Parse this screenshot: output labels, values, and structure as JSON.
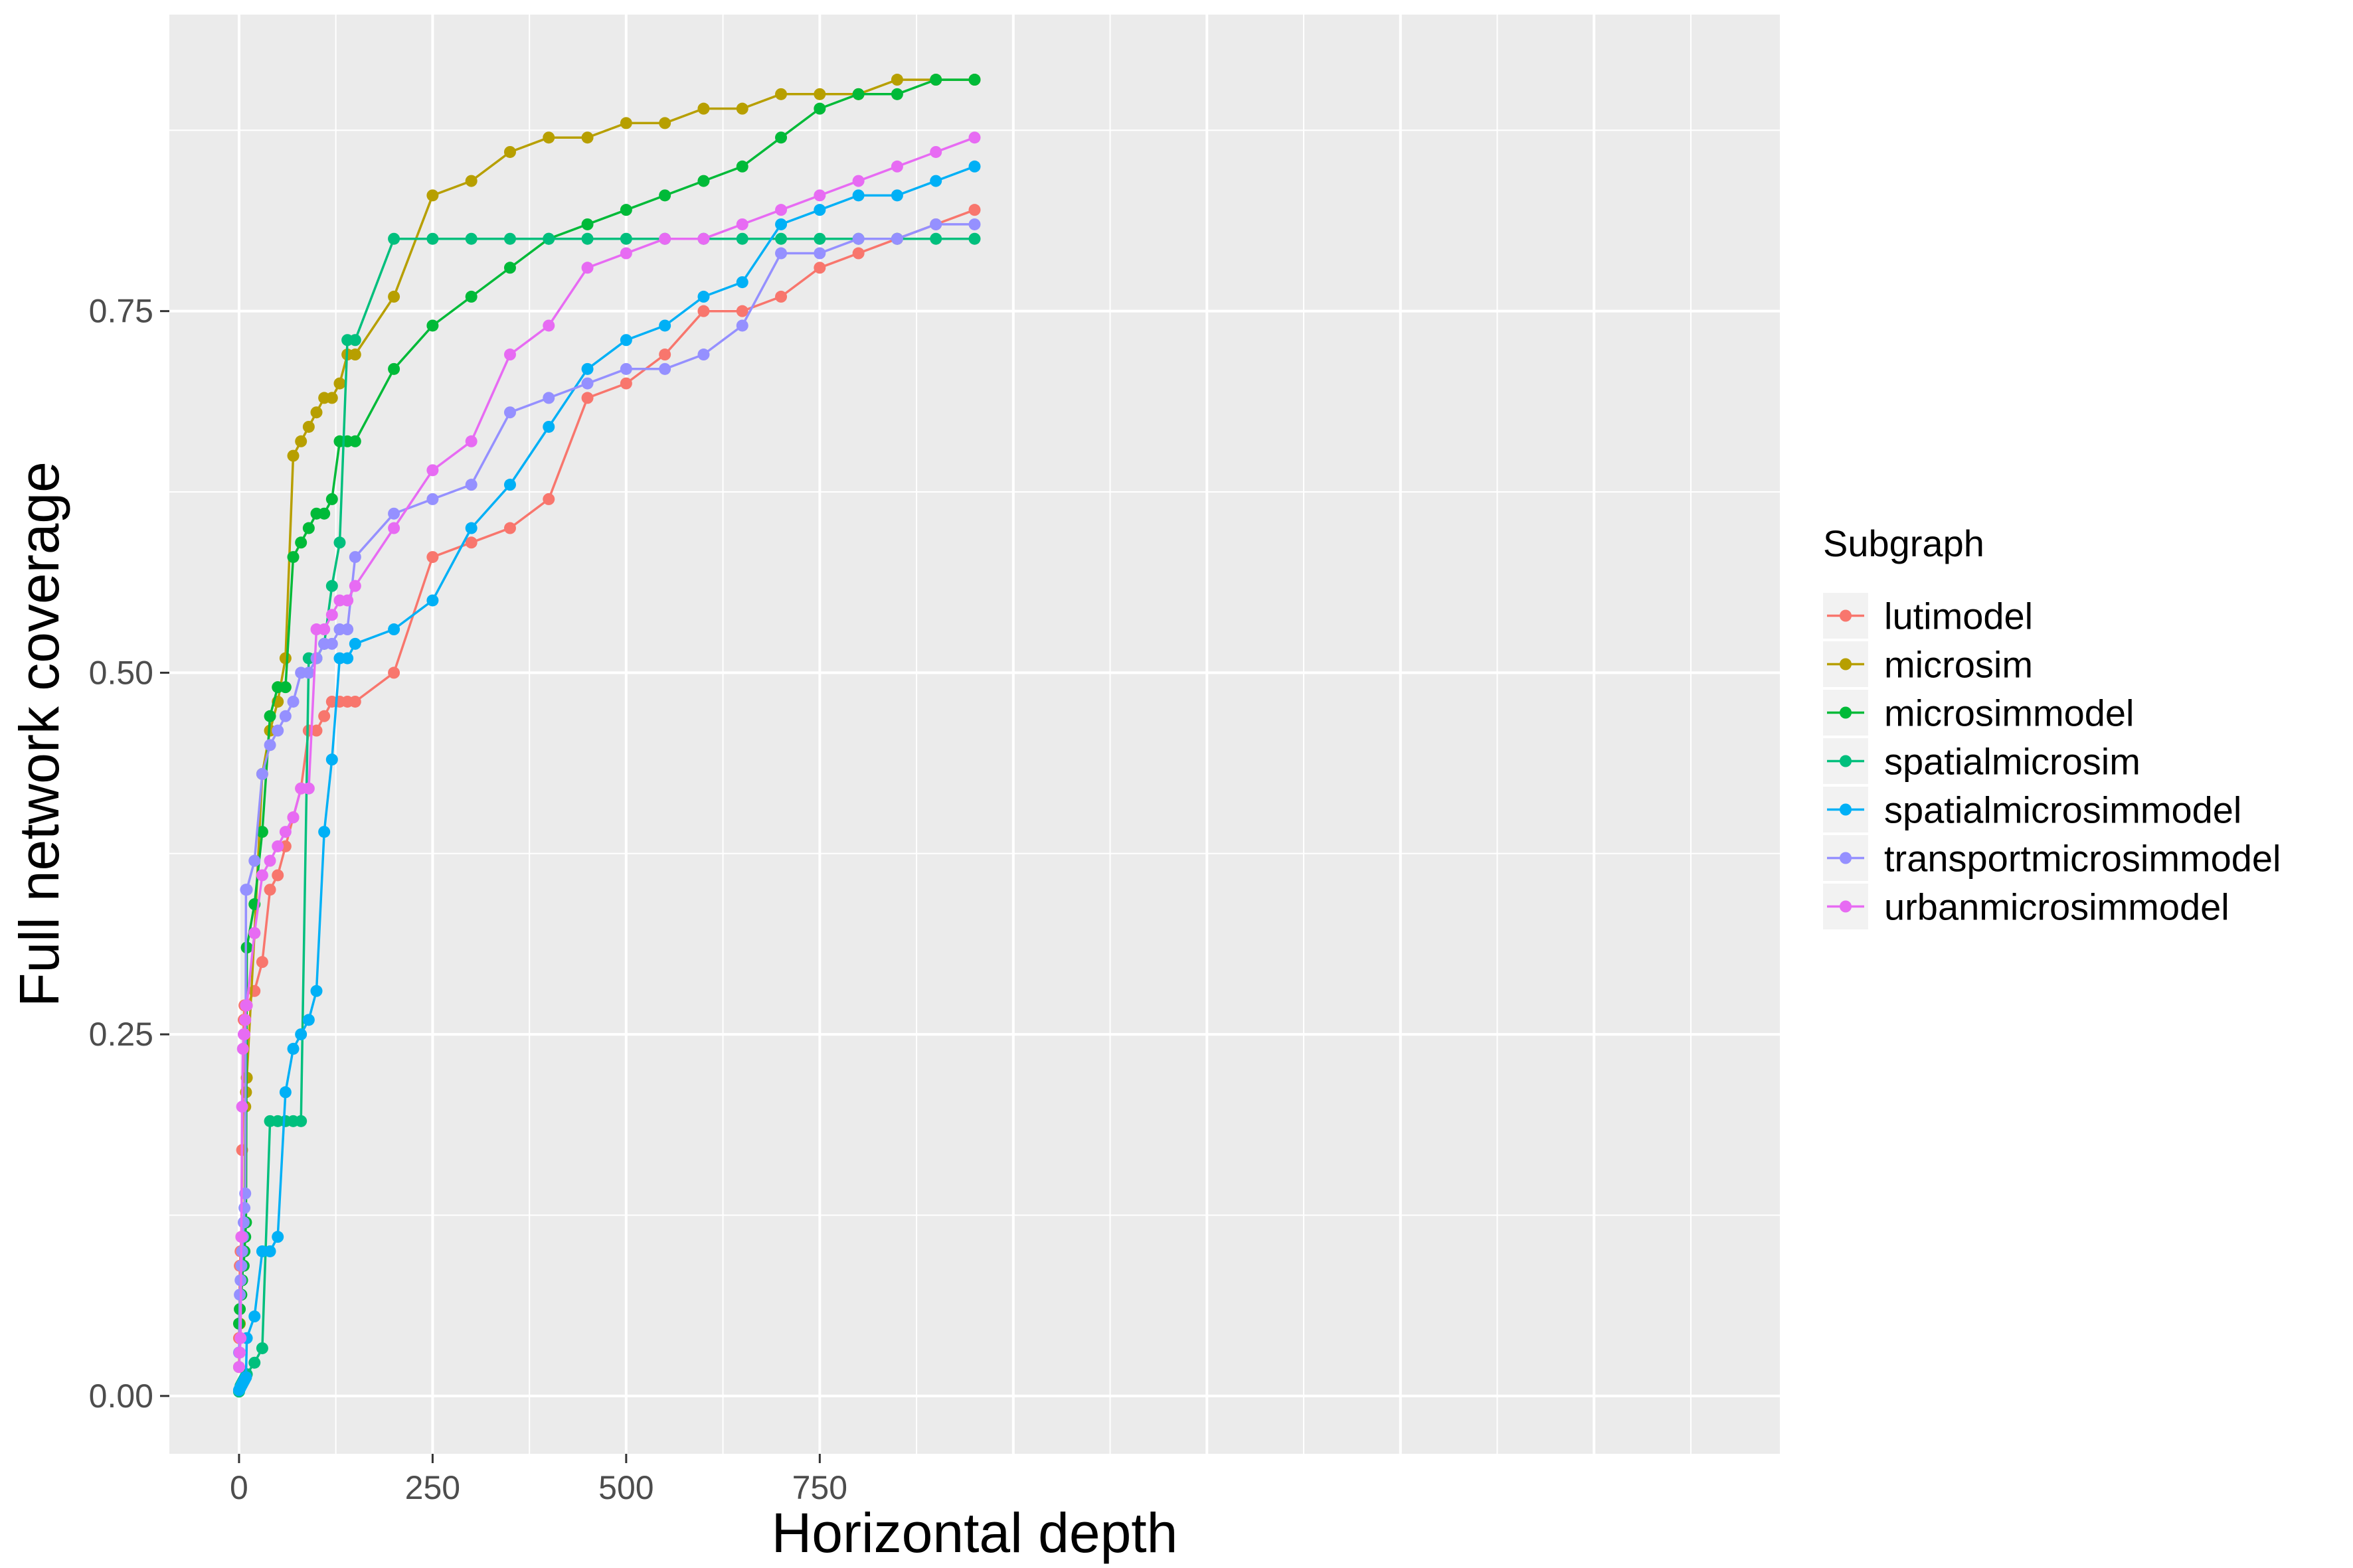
{
  "chart_data": {
    "type": "line",
    "xlabel": "Horizontal depth",
    "ylabel": "Full network coverage",
    "xlim": [
      -90,
      1990
    ],
    "ylim": [
      -0.04,
      0.955
    ],
    "x_ticks": [
      0,
      250,
      500,
      750
    ],
    "x_tick_labels": [
      "0",
      "250",
      "500",
      "750"
    ],
    "y_ticks": [
      0,
      0.25,
      0.5,
      0.75
    ],
    "y_tick_labels": [
      "0.00",
      "0.25",
      "0.50",
      "0.75"
    ],
    "grid": true,
    "legend": {
      "title": "Subgraph",
      "position": "right"
    },
    "colors": {
      "panel_bg": "#ebebeb",
      "grid": "#ffffff",
      "tick": "#333333"
    },
    "series": [
      {
        "name": "lutimodel",
        "color": "#F8766D",
        "x": [
          0,
          1,
          2,
          3,
          4,
          5,
          6,
          7,
          8,
          9,
          10,
          20,
          30,
          40,
          50,
          60,
          70,
          80,
          90,
          100,
          110,
          120,
          130,
          140,
          150,
          200,
          250,
          300,
          350,
          400,
          450,
          500,
          550,
          600,
          650,
          700,
          750,
          800,
          850,
          900,
          950
        ],
        "y": [
          0.04,
          0.09,
          0.1,
          0.11,
          0.17,
          0.2,
          0.26,
          0.27,
          0.27,
          0.27,
          0.27,
          0.28,
          0.3,
          0.35,
          0.36,
          0.38,
          0.4,
          0.42,
          0.46,
          0.46,
          0.47,
          0.48,
          0.48,
          0.48,
          0.48,
          0.5,
          0.58,
          0.59,
          0.6,
          0.62,
          0.69,
          0.7,
          0.72,
          0.75,
          0.75,
          0.76,
          0.78,
          0.79,
          0.8,
          0.81,
          0.82
        ]
      },
      {
        "name": "microsim",
        "color": "#B79F00",
        "x": [
          0,
          1,
          2,
          3,
          4,
          5,
          6,
          7,
          8,
          9,
          10,
          20,
          30,
          40,
          50,
          60,
          70,
          80,
          90,
          100,
          110,
          120,
          130,
          140,
          150,
          200,
          250,
          300,
          350,
          400,
          450,
          500,
          550,
          600,
          650,
          700,
          750,
          800,
          850,
          900,
          950
        ],
        "y": [
          0.02,
          0.05,
          0.07,
          0.08,
          0.09,
          0.1,
          0.11,
          0.12,
          0.2,
          0.21,
          0.22,
          0.32,
          0.43,
          0.46,
          0.48,
          0.51,
          0.65,
          0.66,
          0.67,
          0.68,
          0.69,
          0.69,
          0.7,
          0.72,
          0.72,
          0.76,
          0.83,
          0.84,
          0.86,
          0.87,
          0.87,
          0.88,
          0.88,
          0.89,
          0.89,
          0.9,
          0.9,
          0.9,
          0.91,
          0.91,
          0.91
        ]
      },
      {
        "name": "microsimmodel",
        "color": "#00BA38",
        "x": [
          0,
          1,
          2,
          3,
          4,
          5,
          6,
          7,
          8,
          9,
          10,
          20,
          30,
          40,
          50,
          60,
          70,
          80,
          90,
          100,
          110,
          120,
          130,
          140,
          150,
          200,
          250,
          300,
          350,
          400,
          450,
          500,
          550,
          600,
          650,
          700,
          750,
          800,
          850,
          900,
          950
        ],
        "y": [
          0.05,
          0.06,
          0.07,
          0.07,
          0.08,
          0.09,
          0.09,
          0.1,
          0.11,
          0.12,
          0.31,
          0.34,
          0.39,
          0.47,
          0.49,
          0.49,
          0.58,
          0.59,
          0.6,
          0.61,
          0.61,
          0.62,
          0.66,
          0.66,
          0.66,
          0.71,
          0.74,
          0.76,
          0.78,
          0.8,
          0.81,
          0.82,
          0.83,
          0.84,
          0.85,
          0.87,
          0.89,
          0.9,
          0.9,
          0.91,
          0.91
        ]
      },
      {
        "name": "spatialmicrosim",
        "color": "#00BF7D",
        "x": [
          0,
          1,
          2,
          3,
          4,
          5,
          6,
          7,
          8,
          9,
          10,
          20,
          30,
          40,
          50,
          60,
          70,
          80,
          90,
          100,
          110,
          120,
          130,
          140,
          150,
          200,
          250,
          300,
          350,
          400,
          450,
          500,
          550,
          600,
          650,
          700,
          750,
          800,
          850,
          900,
          950
        ],
        "y": [
          0.003,
          0.005,
          0.007,
          0.008,
          0.009,
          0.01,
          0.011,
          0.012,
          0.013,
          0.014,
          0.015,
          0.023,
          0.033,
          0.19,
          0.19,
          0.19,
          0.19,
          0.19,
          0.51,
          0.51,
          0.52,
          0.56,
          0.59,
          0.73,
          0.73,
          0.8,
          0.8,
          0.8,
          0.8,
          0.8,
          0.8,
          0.8,
          0.8,
          0.8,
          0.8,
          0.8,
          0.8,
          0.8,
          0.8,
          0.8,
          0.8
        ]
      },
      {
        "name": "spatialmicrosimmodel",
        "color": "#00B0F6",
        "x": [
          0,
          1,
          2,
          3,
          4,
          5,
          6,
          7,
          8,
          9,
          10,
          20,
          30,
          40,
          50,
          60,
          70,
          80,
          90,
          100,
          110,
          120,
          130,
          140,
          150,
          200,
          250,
          300,
          350,
          400,
          450,
          500,
          550,
          600,
          650,
          700,
          750,
          800,
          850,
          900,
          950
        ],
        "y": [
          0.004,
          0.005,
          0.006,
          0.007,
          0.008,
          0.009,
          0.01,
          0.011,
          0.012,
          0.013,
          0.04,
          0.055,
          0.1,
          0.1,
          0.11,
          0.21,
          0.24,
          0.25,
          0.26,
          0.28,
          0.39,
          0.44,
          0.51,
          0.51,
          0.52,
          0.53,
          0.55,
          0.6,
          0.63,
          0.67,
          0.71,
          0.73,
          0.74,
          0.76,
          0.77,
          0.81,
          0.82,
          0.83,
          0.83,
          0.84,
          0.85
        ]
      },
      {
        "name": "transportmicrosimmodel",
        "color": "#9590FF",
        "x": [
          0,
          1,
          2,
          3,
          4,
          5,
          6,
          7,
          8,
          9,
          10,
          20,
          30,
          40,
          50,
          60,
          70,
          80,
          90,
          100,
          110,
          120,
          130,
          140,
          150,
          200,
          250,
          300,
          350,
          400,
          450,
          500,
          550,
          600,
          650,
          700,
          750,
          800,
          850,
          900,
          950
        ],
        "y": [
          0.03,
          0.07,
          0.08,
          0.09,
          0.1,
          0.11,
          0.12,
          0.13,
          0.14,
          0.35,
          0.35,
          0.37,
          0.43,
          0.45,
          0.46,
          0.47,
          0.48,
          0.5,
          0.5,
          0.51,
          0.52,
          0.52,
          0.53,
          0.53,
          0.58,
          0.61,
          0.62,
          0.63,
          0.68,
          0.69,
          0.7,
          0.71,
          0.71,
          0.72,
          0.74,
          0.79,
          0.79,
          0.8,
          0.8,
          0.81,
          0.81
        ]
      },
      {
        "name": "urbanmicrosimmodel",
        "color": "#E76BF3",
        "x": [
          0,
          1,
          2,
          3,
          4,
          5,
          6,
          7,
          8,
          9,
          10,
          20,
          30,
          40,
          50,
          60,
          70,
          80,
          90,
          100,
          110,
          120,
          130,
          140,
          150,
          200,
          250,
          300,
          350,
          400,
          450,
          500,
          550,
          600,
          650,
          700,
          750,
          800,
          850,
          900,
          950
        ],
        "y": [
          0.02,
          0.03,
          0.04,
          0.11,
          0.2,
          0.24,
          0.25,
          0.25,
          0.26,
          0.27,
          0.27,
          0.32,
          0.36,
          0.37,
          0.38,
          0.39,
          0.4,
          0.42,
          0.42,
          0.53,
          0.53,
          0.54,
          0.55,
          0.55,
          0.56,
          0.6,
          0.64,
          0.66,
          0.72,
          0.74,
          0.78,
          0.79,
          0.8,
          0.8,
          0.81,
          0.82,
          0.83,
          0.84,
          0.85,
          0.86,
          0.87
        ]
      }
    ]
  }
}
